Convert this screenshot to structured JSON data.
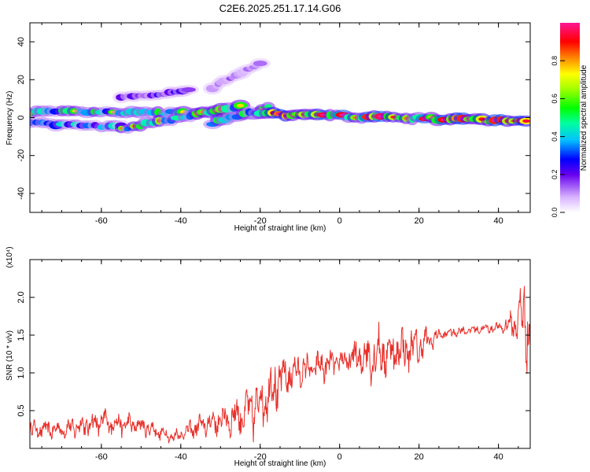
{
  "page_title": "C2E6.2025.251.17.14.G06",
  "colors": {
    "snr_line": "#e8302a",
    "axis": "#000000"
  },
  "chart_data": [
    {
      "type": "heatmap",
      "name": "spectrogram",
      "xlabel": "Height of straight line (km)",
      "ylabel": "Frequency (Hz)",
      "xlim": [
        -78,
        48
      ],
      "ylim": [
        -50,
        50
      ],
      "x_ticks": [
        -60,
        -40,
        -20,
        0,
        20,
        40
      ],
      "x_tick_labels": [
        "-60",
        "-40",
        "-20",
        "0",
        "20",
        "40"
      ],
      "y_ticks": [
        -40,
        -20,
        0,
        20,
        40
      ],
      "y_tick_labels": [
        "-40",
        "-20",
        "0",
        "20",
        "40"
      ],
      "colorbar": {
        "label": "Normalized spectral amplitude",
        "range": [
          0,
          1
        ],
        "ticks": [
          0.0,
          0.2,
          0.4,
          0.6,
          0.8
        ],
        "tick_labels": [
          "0.0",
          "0.2",
          "0.4",
          "0.6",
          "0.8"
        ]
      },
      "tracks": [
        {
          "x0": -78,
          "x1": -20,
          "f0": 3,
          "f1": 2,
          "amplitude": 0.45
        },
        {
          "x0": -78,
          "x1": -55,
          "f0": -3,
          "f1": -5,
          "amplitude": 0.35
        },
        {
          "x0": -55,
          "x1": -25,
          "f0": -6,
          "f1": 6,
          "amplitude": 0.5
        },
        {
          "x0": -32,
          "x1": -18,
          "f0": -3,
          "f1": 5,
          "amplitude": 0.45
        },
        {
          "x0": -20,
          "x1": 47,
          "f0": 2,
          "f1": -2,
          "amplitude": 0.75
        },
        {
          "x0": -55,
          "x1": -38,
          "f0": 11,
          "f1": 14,
          "amplitude": 0.2
        },
        {
          "x0": -32,
          "x1": -20,
          "f0": 16,
          "f1": 28,
          "amplitude": 0.12
        }
      ]
    },
    {
      "type": "line",
      "name": "snr",
      "xlabel": "Height of straight line (km)",
      "ylabel": "SNR (10 * v/v)",
      "y_scale_label": "(x10⁴)",
      "xlim": [
        -78,
        48
      ],
      "ylim": [
        0,
        2.5
      ],
      "x_ticks": [
        -60,
        -40,
        -20,
        0,
        20,
        40
      ],
      "x_tick_labels": [
        "-60",
        "-40",
        "-20",
        "0",
        "20",
        "40"
      ],
      "y_ticks": [
        0.5,
        1.0,
        1.5,
        2.0
      ],
      "y_tick_labels": [
        "0.5",
        "1.0",
        "1.5",
        "2.0"
      ],
      "envelope": {
        "x": [
          -78,
          -70,
          -60,
          -50,
          -42,
          -35,
          -28,
          -22,
          -17,
          -12,
          -8,
          -3,
          0,
          5,
          10,
          15,
          20,
          25,
          30,
          35,
          40,
          44,
          47,
          48
        ],
        "base": [
          0.25,
          0.25,
          0.35,
          0.3,
          0.15,
          0.3,
          0.4,
          0.5,
          0.8,
          1.0,
          1.05,
          1.1,
          1.15,
          1.2,
          1.25,
          1.3,
          1.35,
          1.5,
          1.55,
          1.58,
          1.6,
          1.65,
          1.8,
          1.4
        ],
        "amp": [
          0.12,
          0.12,
          0.18,
          0.12,
          0.08,
          0.15,
          0.25,
          0.35,
          0.4,
          0.25,
          0.2,
          0.2,
          0.15,
          0.3,
          0.35,
          0.3,
          0.25,
          0.08,
          0.06,
          0.06,
          0.06,
          0.2,
          0.6,
          0.5
        ]
      }
    }
  ]
}
